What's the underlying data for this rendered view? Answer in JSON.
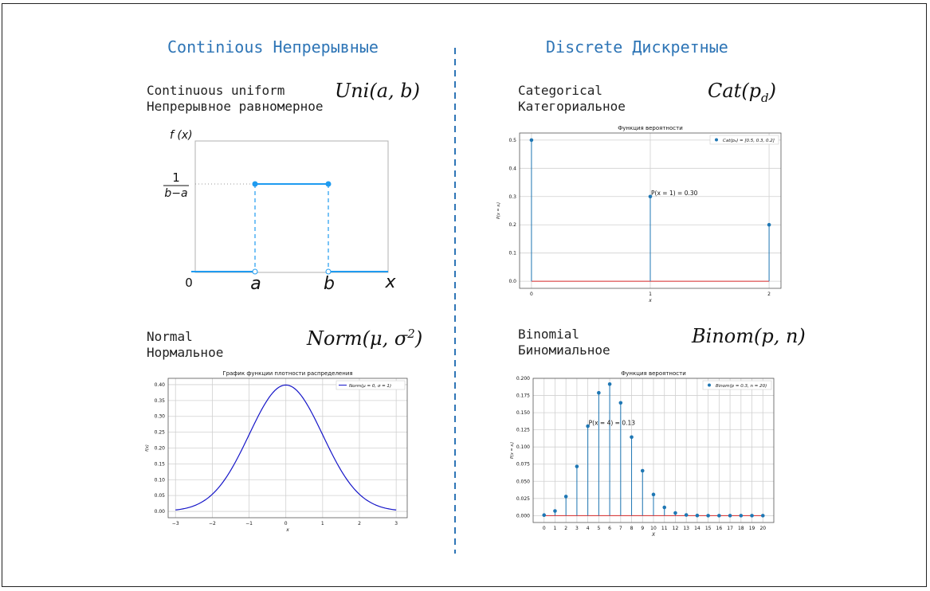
{
  "sections": {
    "continuous_title": "Continious Непрерывные",
    "discrete_title": "Discrete Дискретные"
  },
  "colors": {
    "title": "#2e75b6",
    "divider": "#2e75b6",
    "stem": "#1f77b4",
    "uniform": "#1f9bf0",
    "baseline": "#d62728",
    "normal_curve": "#1515c8"
  },
  "distributions": {
    "uniform": {
      "name_en": "Continuous uniform",
      "name_ru": "Непрерывное равномерное",
      "formula_base": "Uni(a, b)",
      "diagram": {
        "y_label": "f (x)",
        "density_num": "1",
        "density_den": "b−a",
        "origin": "0",
        "a_label": "a",
        "b_label": "b",
        "x_label": "x"
      }
    },
    "categorical": {
      "name_en": "Categorical",
      "name_ru": "Категориальное",
      "formula_base": "Cat(p",
      "formula_sub": "d",
      "formula_end": ")"
    },
    "normal": {
      "name_en": "Normal",
      "name_ru": "Нормальное",
      "formula_base": "Norm(μ, σ",
      "formula_sup": "2",
      "formula_end": ")"
    },
    "binomial": {
      "name_en": "Binomial",
      "name_ru": "Биномиальное",
      "formula_base": "Binom(p, n)"
    }
  },
  "chart_data": [
    {
      "id": "categorical",
      "type": "scatter",
      "title": "Функция вероятности",
      "xlabel": "x",
      "ylabel": "P(x = xᵢ)",
      "legend": "Cat(pₐ) = [0.5, 0.3, 0.2]",
      "legend_position": "top-right",
      "grid": true,
      "x": [
        0,
        1,
        2
      ],
      "values": [
        0.5,
        0.3,
        0.2
      ],
      "xticks": [
        "0",
        "1",
        "2"
      ],
      "yticks": [
        "0.0",
        "0.1",
        "0.2",
        "0.3",
        "0.4",
        "0.5"
      ],
      "xlim": [
        -0.1,
        2.1
      ],
      "ylim": [
        -0.025,
        0.525
      ],
      "annotation": {
        "x": 1,
        "y": 0.3,
        "text": "P(x = 1) = 0.30"
      }
    },
    {
      "id": "normal",
      "type": "line",
      "title": "График функции плотности распределения",
      "xlabel": "x",
      "ylabel": "f(x)",
      "legend": "Norm(μ = 0, σ = 1)",
      "legend_position": "top-right",
      "grid": true,
      "mu": 0,
      "sigma": 1,
      "xlim": [
        -3.2,
        3.3
      ],
      "ylim": [
        -0.02,
        0.42
      ],
      "xticks": [
        "−3",
        "−2",
        "−1",
        "0",
        "1",
        "2",
        "3"
      ],
      "yticks": [
        "0.00",
        "0.05",
        "0.10",
        "0.15",
        "0.20",
        "0.25",
        "0.30",
        "0.35",
        "0.40"
      ]
    },
    {
      "id": "binomial",
      "type": "scatter",
      "title": "Функция вероятности",
      "xlabel": "X",
      "ylabel": "P(x = xᵢ)",
      "legend": "Binom(p = 0.3, n = 20)",
      "legend_position": "top-right",
      "grid": true,
      "x": [
        0,
        1,
        2,
        3,
        4,
        5,
        6,
        7,
        8,
        9,
        10,
        11,
        12,
        13,
        14,
        15,
        16,
        17,
        18,
        19,
        20
      ],
      "values": [
        0.0008,
        0.0068,
        0.0278,
        0.0716,
        0.1304,
        0.1789,
        0.1916,
        0.1643,
        0.1144,
        0.0654,
        0.0308,
        0.012,
        0.0039,
        0.001,
        0.0002,
        0.0,
        0.0,
        0.0,
        0.0,
        0.0,
        0.0
      ],
      "xticks": [
        "0",
        "1",
        "2",
        "3",
        "4",
        "5",
        "6",
        "7",
        "8",
        "9",
        "10",
        "11",
        "12",
        "13",
        "14",
        "15",
        "16",
        "17",
        "18",
        "19",
        "20"
      ],
      "yticks": [
        "0.000",
        "0.025",
        "0.050",
        "0.075",
        "0.100",
        "0.125",
        "0.150",
        "0.175",
        "0.200"
      ],
      "xlim": [
        -1,
        21
      ],
      "ylim": [
        -0.01,
        0.2
      ],
      "annotation": {
        "x": 4,
        "y": 0.13,
        "text": "P(x = 4) = 0.13"
      }
    }
  ]
}
